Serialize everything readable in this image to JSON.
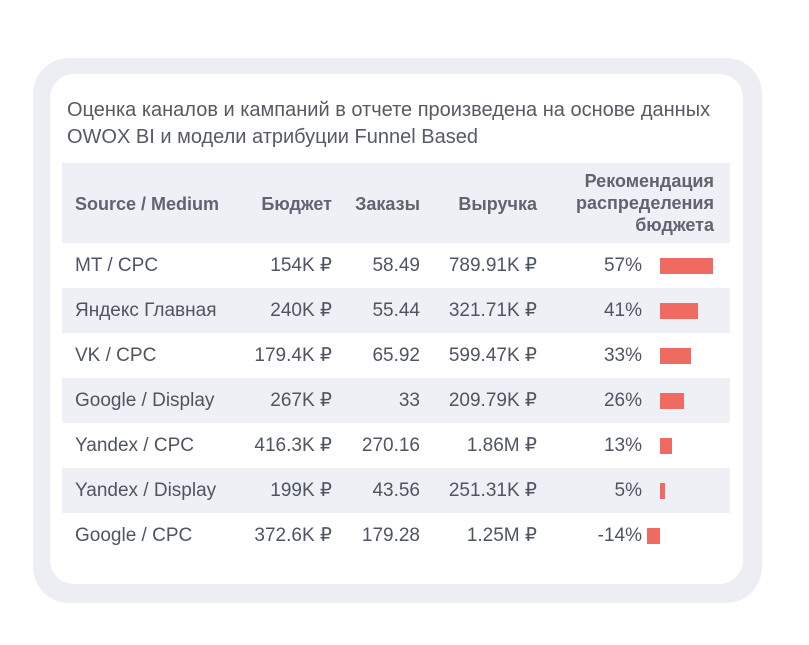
{
  "caption": "Оценка каналов и кампаний в отчете произведена на основе данных OWOX BI и модели атрибуции Funnel Based",
  "colors": {
    "bar": "#ef6a60",
    "stripe": "#eef0f5",
    "frame": "#eceef3"
  },
  "table": {
    "headers": {
      "source": "Source / Medium",
      "budget": "Бюджет",
      "orders": "Заказы",
      "revenue": "Выручка",
      "recommendation": [
        "Рекомендация",
        "распределения",
        "бюджета"
      ]
    },
    "rows": [
      {
        "source": "MT / CPC",
        "budget": "154K ₽",
        "orders": "58.49",
        "revenue": "789.91K ₽",
        "pct_label": "57%",
        "pct": 57
      },
      {
        "source": "Яндекс Главная",
        "budget": "240K ₽",
        "orders": "55.44",
        "revenue": "321.71K ₽",
        "pct_label": "41%",
        "pct": 41
      },
      {
        "source": "VK / CPC",
        "budget": "179.4K ₽",
        "orders": "65.92",
        "revenue": "599.47K ₽",
        "pct_label": "33%",
        "pct": 33
      },
      {
        "source": "Google / Display",
        "budget": "267K ₽",
        "orders": "33",
        "revenue": "209.79K ₽",
        "pct_label": "26%",
        "pct": 26
      },
      {
        "source": "Yandex / CPC",
        "budget": "416.3K ₽",
        "orders": "270.16",
        "revenue": "1.86M ₽",
        "pct_label": "13%",
        "pct": 13
      },
      {
        "source": "Yandex / Display",
        "budget": "199K ₽",
        "orders": "43.56",
        "revenue": "251.31K ₽",
        "pct_label": "5%",
        "pct": 5
      },
      {
        "source": "Google / CPC",
        "budget": "372.6K ₽",
        "orders": "179.28",
        "revenue": "1.25M ₽",
        "pct_label": "-14%",
        "pct": -14
      }
    ]
  }
}
